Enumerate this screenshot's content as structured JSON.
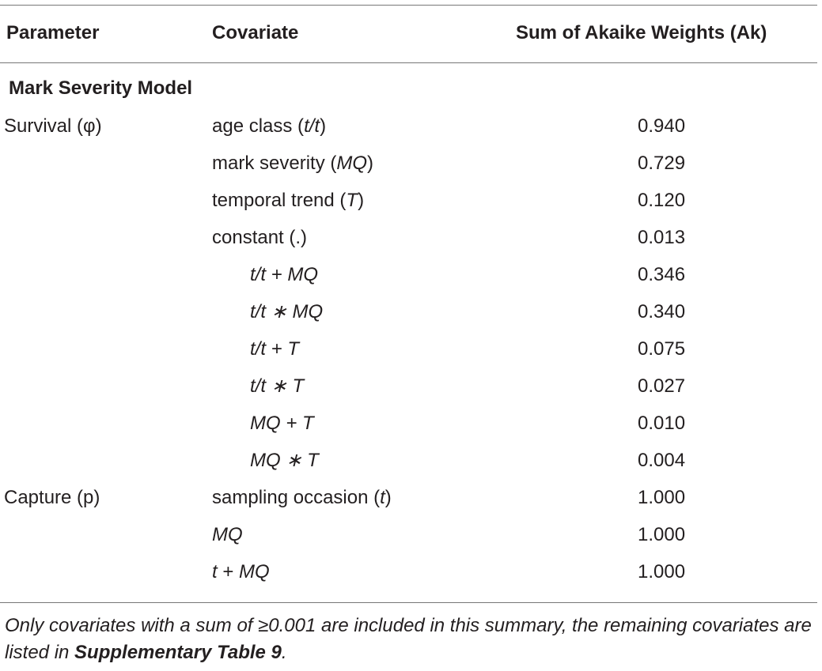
{
  "header": {
    "parameter": "Parameter",
    "covariate": "Covariate",
    "sum": "Sum of Akaike Weights (Ak)"
  },
  "section_title": "Mark Severity Model",
  "rows": [
    {
      "parameter": "Survival (φ)",
      "covariate": [
        {
          "t": "age class (",
          "i": false
        },
        {
          "t": "t/t",
          "i": true
        },
        {
          "t": ")",
          "i": false
        }
      ],
      "indent": 0,
      "value": "0.940"
    },
    {
      "parameter": "",
      "covariate": [
        {
          "t": "mark severity (",
          "i": false
        },
        {
          "t": "MQ",
          "i": true
        },
        {
          "t": ")",
          "i": false
        }
      ],
      "indent": 0,
      "value": "0.729"
    },
    {
      "parameter": "",
      "covariate": [
        {
          "t": "temporal trend (",
          "i": false
        },
        {
          "t": "T",
          "i": true
        },
        {
          "t": ")",
          "i": false
        }
      ],
      "indent": 0,
      "value": "0.120"
    },
    {
      "parameter": "",
      "covariate": [
        {
          "t": "constant (.)",
          "i": false
        }
      ],
      "indent": 0,
      "value": "0.013"
    },
    {
      "parameter": "",
      "covariate": [
        {
          "t": "t/t + MQ",
          "i": true
        }
      ],
      "indent": 1,
      "value": "0.346"
    },
    {
      "parameter": "",
      "covariate": [
        {
          "t": "t/t ∗ MQ",
          "i": true
        }
      ],
      "indent": 1,
      "value": "0.340"
    },
    {
      "parameter": "",
      "covariate": [
        {
          "t": "t/t + T",
          "i": true
        }
      ],
      "indent": 1,
      "value": "0.075"
    },
    {
      "parameter": "",
      "covariate": [
        {
          "t": "t/t ∗ T",
          "i": true
        }
      ],
      "indent": 1,
      "value": "0.027"
    },
    {
      "parameter": "",
      "covariate": [
        {
          "t": "MQ + T",
          "i": true
        }
      ],
      "indent": 1,
      "value": "0.010"
    },
    {
      "parameter": "",
      "covariate": [
        {
          "t": "MQ ∗ T",
          "i": true
        }
      ],
      "indent": 1,
      "value": "0.004"
    },
    {
      "parameter": "Capture (p)",
      "covariate": [
        {
          "t": "sampling occasion (",
          "i": false
        },
        {
          "t": "t",
          "i": true
        },
        {
          "t": ")",
          "i": false
        }
      ],
      "indent": 0,
      "value": "1.000"
    },
    {
      "parameter": "",
      "covariate": [
        {
          "t": "MQ",
          "i": true
        }
      ],
      "indent": 0,
      "value": "1.000"
    },
    {
      "parameter": "",
      "covariate": [
        {
          "t": "t",
          "i": true
        },
        {
          "t": " + ",
          "i": false
        },
        {
          "t": "MQ",
          "i": true
        }
      ],
      "indent": 0,
      "value": "1.000"
    }
  ],
  "footnote": {
    "text": "Only covariates with a sum of ≥0.001 are included in this summary, the remaining covariates are listed in ",
    "link": "Supplementary Table 9",
    "end": "."
  }
}
